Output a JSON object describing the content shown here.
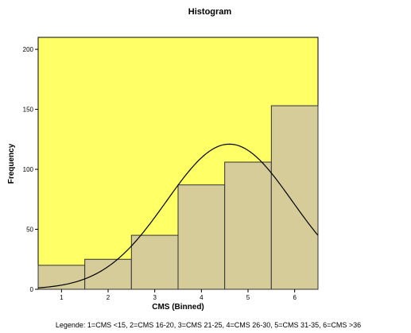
{
  "chart_data": {
    "type": "bar",
    "title": "Histogram",
    "xlabel": "CMS (Binned)",
    "ylabel": "Frequency",
    "categories": [
      "1",
      "2",
      "3",
      "4",
      "5",
      "6"
    ],
    "values": [
      20,
      25,
      45,
      87,
      106,
      153
    ],
    "xlim": [
      0.5,
      6.5
    ],
    "ylim": [
      0,
      210
    ],
    "yticks": [
      0,
      50,
      100,
      150,
      200
    ],
    "xticks": [
      1,
      2,
      3,
      4,
      5,
      6
    ],
    "overlay": {
      "type": "normal-curve",
      "mean": 4.6,
      "sd": 1.35,
      "peak": 121,
      "stroke": "#000000"
    },
    "plot_background": "#ffff66",
    "bar_fill": "#d6cc99",
    "bar_stroke": "#333333",
    "grid": false,
    "note": "Legende: 1=CMS <15, 2=CMS 16-20, 3=CMS 21-25, 4=CMS 26-30, 5=CMS 31-35, 6=CMS >36"
  }
}
